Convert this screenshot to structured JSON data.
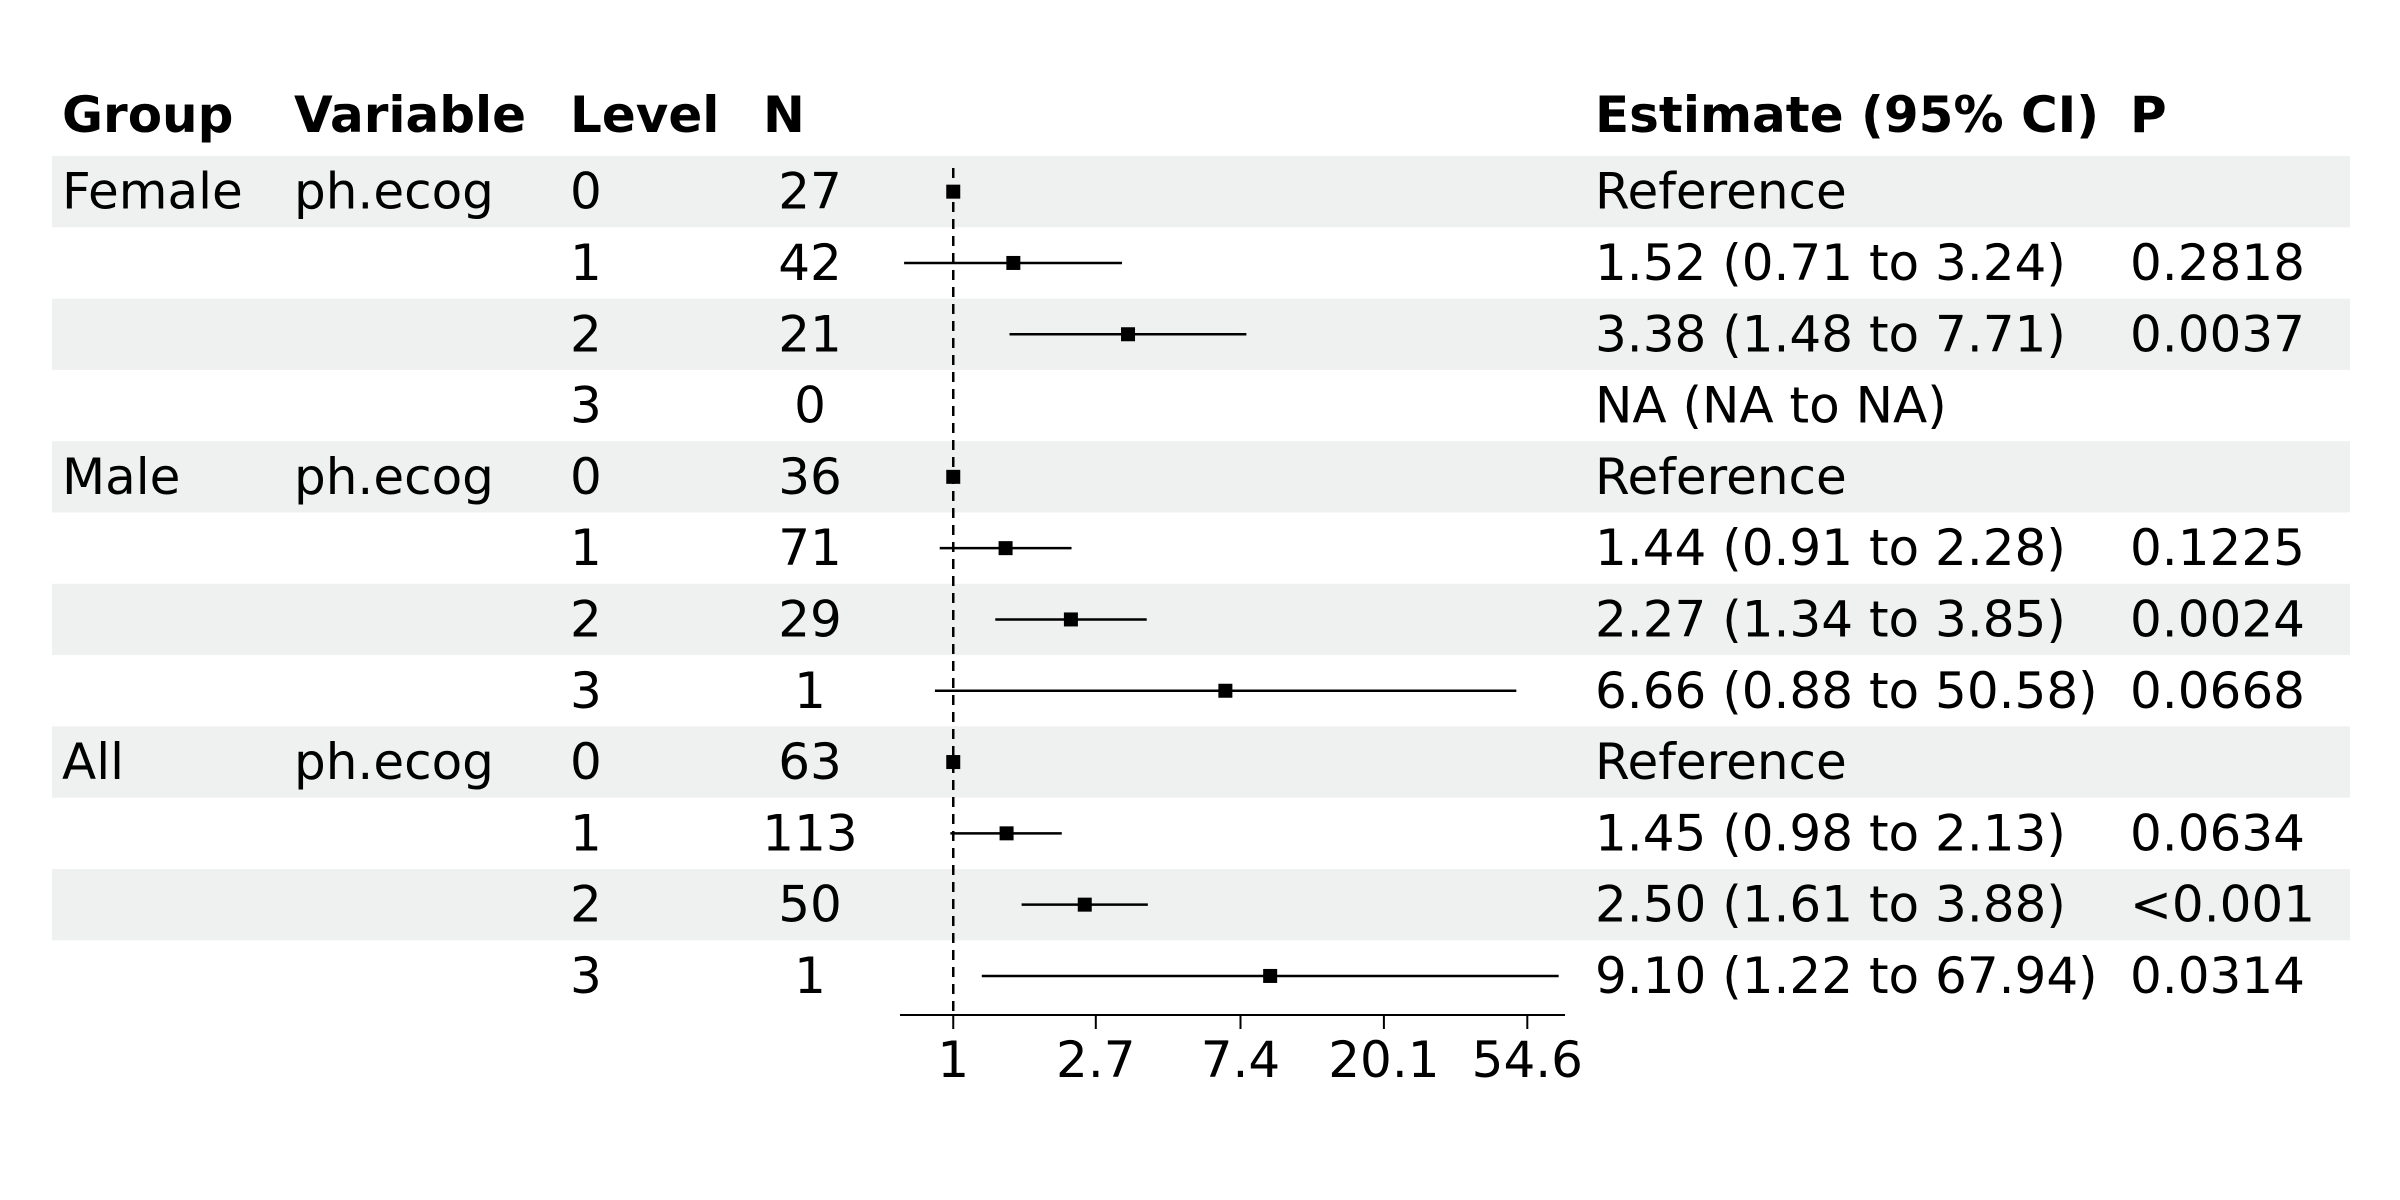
{
  "chart_data": {
    "type": "forest",
    "title": "",
    "columns": [
      "Group",
      "Variable",
      "Level",
      "N",
      "Estimate (95% CI)",
      "P"
    ],
    "x_axis": {
      "scale": "log",
      "reference_line": 1,
      "ticks": [
        1,
        2.7,
        7.4,
        20.1,
        54.6
      ],
      "tick_labels": [
        "1",
        "2.7",
        "7.4",
        "20.1",
        "54.6"
      ],
      "range": [
        0.69,
        71
      ]
    },
    "colors": {
      "stripe": "#eff1f0",
      "mark": "#000000"
    },
    "rows": [
      {
        "group": "Female",
        "variable": "ph.ecog",
        "level": "0",
        "n": "27",
        "estimate": 1,
        "lower": null,
        "upper": null,
        "label": "Reference",
        "p": ""
      },
      {
        "group": "",
        "variable": "",
        "level": "1",
        "n": "42",
        "estimate": 1.52,
        "lower": 0.71,
        "upper": 3.24,
        "label": "1.52 (0.71 to 3.24)",
        "p": "0.2818"
      },
      {
        "group": "",
        "variable": "",
        "level": "2",
        "n": "21",
        "estimate": 3.38,
        "lower": 1.48,
        "upper": 7.71,
        "label": "3.38 (1.48 to 7.71)",
        "p": "0.0037"
      },
      {
        "group": "",
        "variable": "",
        "level": "3",
        "n": "0",
        "estimate": null,
        "lower": null,
        "upper": null,
        "label": "NA (NA to NA)",
        "p": ""
      },
      {
        "group": "Male",
        "variable": "ph.ecog",
        "level": "0",
        "n": "36",
        "estimate": 1,
        "lower": null,
        "upper": null,
        "label": "Reference",
        "p": ""
      },
      {
        "group": "",
        "variable": "",
        "level": "1",
        "n": "71",
        "estimate": 1.44,
        "lower": 0.91,
        "upper": 2.28,
        "label": "1.44 (0.91 to 2.28)",
        "p": "0.1225"
      },
      {
        "group": "",
        "variable": "",
        "level": "2",
        "n": "29",
        "estimate": 2.27,
        "lower": 1.34,
        "upper": 3.85,
        "label": "2.27 (1.34 to 3.85)",
        "p": "0.0024"
      },
      {
        "group": "",
        "variable": "",
        "level": "3",
        "n": "1",
        "estimate": 6.66,
        "lower": 0.88,
        "upper": 50.58,
        "label": "6.66 (0.88 to 50.58)",
        "p": "0.0668"
      },
      {
        "group": "All",
        "variable": "ph.ecog",
        "level": "0",
        "n": "63",
        "estimate": 1,
        "lower": null,
        "upper": null,
        "label": "Reference",
        "p": ""
      },
      {
        "group": "",
        "variable": "",
        "level": "1",
        "n": "113",
        "estimate": 1.45,
        "lower": 0.98,
        "upper": 2.13,
        "label": "1.45 (0.98 to 2.13)",
        "p": "0.0634"
      },
      {
        "group": "",
        "variable": "",
        "level": "2",
        "n": "50",
        "estimate": 2.5,
        "lower": 1.61,
        "upper": 3.88,
        "label": "2.50 (1.61 to 3.88)",
        "p": "<0.001"
      },
      {
        "group": "",
        "variable": "",
        "level": "3",
        "n": "1",
        "estimate": 9.1,
        "lower": 1.22,
        "upper": 67.94,
        "label": "9.10 (1.22 to 67.94)",
        "p": "0.0314"
      }
    ]
  }
}
